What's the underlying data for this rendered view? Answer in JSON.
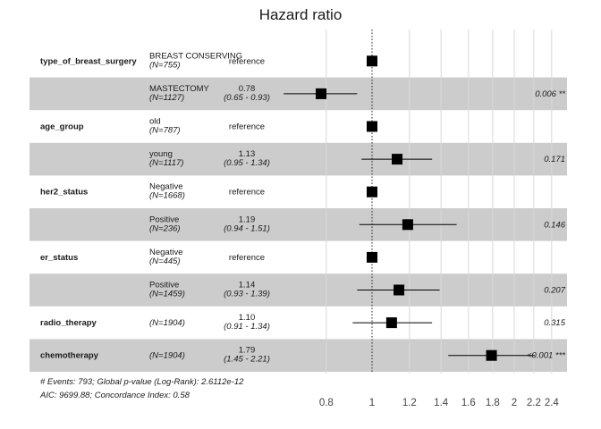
{
  "chart_data": {
    "type": "forest",
    "title": "Hazard ratio",
    "x_scale": "log",
    "xlim": [
      0.62,
      2.5
    ],
    "reference_line": 1,
    "ticks": [
      {
        "value": 0.8,
        "label": "0.8"
      },
      {
        "value": 1.0,
        "label": "1"
      },
      {
        "value": 1.2,
        "label": "1.2"
      },
      {
        "value": 1.4,
        "label": "1.4"
      },
      {
        "value": 1.6,
        "label": "1.6"
      },
      {
        "value": 1.8,
        "label": "1.8"
      },
      {
        "value": 2.0,
        "label": "2"
      },
      {
        "value": 2.2,
        "label": "2.2"
      },
      {
        "value": 2.4,
        "label": "2.4"
      }
    ],
    "rows": [
      {
        "var": "type_of_breast_surgery",
        "level": "BREAST CONSERVING",
        "n": "(N=755)",
        "hr_text": "reference",
        "ci_text": "",
        "p_text": "",
        "hr": 1.0,
        "lo": null,
        "hi": null,
        "shaded": false
      },
      {
        "var": "",
        "level": "MASTECTOMY",
        "n": "(N=1127)",
        "hr_text": "0.78",
        "ci_text": "(0.65 - 0.93)",
        "p_text": "0.006 **",
        "hr": 0.78,
        "lo": 0.65,
        "hi": 0.93,
        "shaded": true
      },
      {
        "var": "age_group",
        "level": "old",
        "n": "(N=787)",
        "hr_text": "reference",
        "ci_text": "",
        "p_text": "",
        "hr": 1.0,
        "lo": null,
        "hi": null,
        "shaded": false
      },
      {
        "var": "",
        "level": "young",
        "n": "(N=1117)",
        "hr_text": "1.13",
        "ci_text": "(0.95 - 1.34)",
        "p_text": "0.171",
        "hr": 1.13,
        "lo": 0.95,
        "hi": 1.34,
        "shaded": true
      },
      {
        "var": "her2_status",
        "level": "Negative",
        "n": "(N=1668)",
        "hr_text": "reference",
        "ci_text": "",
        "p_text": "",
        "hr": 1.0,
        "lo": null,
        "hi": null,
        "shaded": false
      },
      {
        "var": "",
        "level": "Positive",
        "n": "(N=236)",
        "hr_text": "1.19",
        "ci_text": "(0.94 - 1.51)",
        "p_text": "0.146",
        "hr": 1.19,
        "lo": 0.94,
        "hi": 1.51,
        "shaded": true
      },
      {
        "var": "er_status",
        "level": "Negative",
        "n": "(N=445)",
        "hr_text": "reference",
        "ci_text": "",
        "p_text": "",
        "hr": 1.0,
        "lo": null,
        "hi": null,
        "shaded": false
      },
      {
        "var": "",
        "level": "Positive",
        "n": "(N=1459)",
        "hr_text": "1.14",
        "ci_text": "(0.93 - 1.39)",
        "p_text": "0.207",
        "hr": 1.14,
        "lo": 0.93,
        "hi": 1.39,
        "shaded": true
      },
      {
        "var": "radio_therapy",
        "level": "",
        "n": "(N=1904)",
        "hr_text": "1.10",
        "ci_text": "(0.91 - 1.34)",
        "p_text": "0.315",
        "hr": 1.1,
        "lo": 0.91,
        "hi": 1.34,
        "shaded": false
      },
      {
        "var": "chemotherapy",
        "level": "",
        "n": "(N=1904)",
        "hr_text": "1.79",
        "ci_text": "(1.45 - 2.21)",
        "p_text": "<0.001 ***",
        "hr": 1.79,
        "lo": 1.45,
        "hi": 2.21,
        "shaded": true
      }
    ],
    "footer": [
      "# Events: 793; Global p-value (Log-Rank): 2.6112e-12",
      "AIC: 9699.88; Concordance Index: 0.58"
    ],
    "colors": {
      "shade": "#cccccc",
      "grid": "#d9d9d9",
      "marker": "#000000",
      "text": "#1a1a1a"
    }
  }
}
